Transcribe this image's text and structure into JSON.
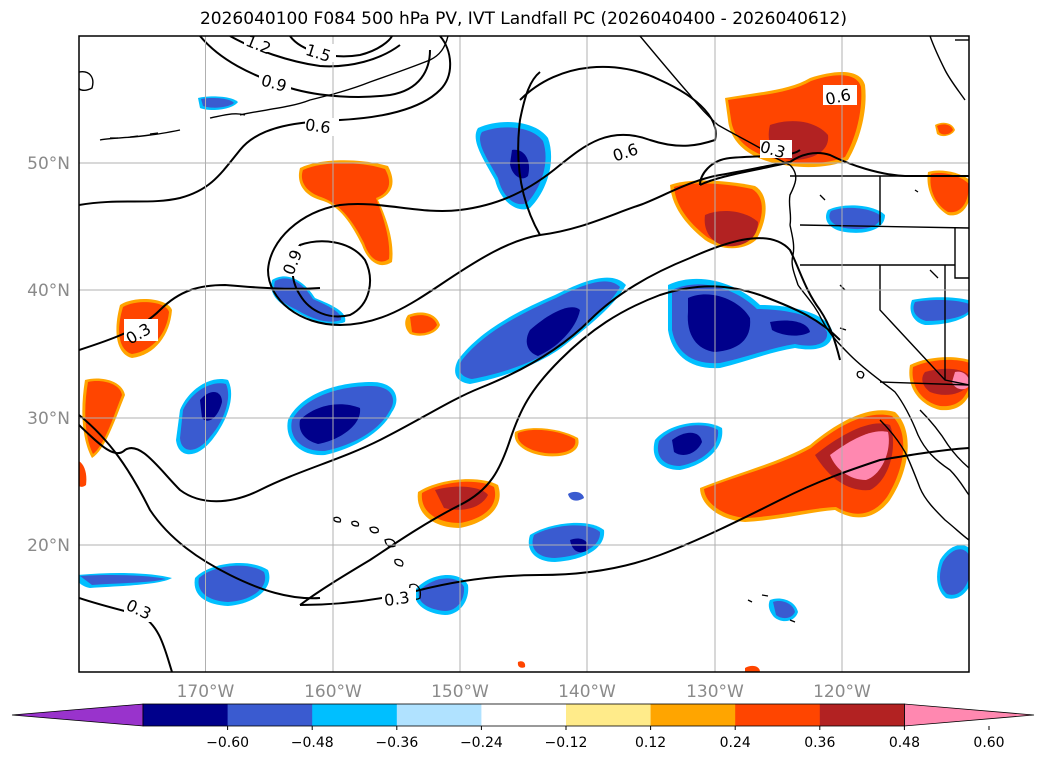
{
  "title": "2026040100 F084 500 hPa PV, IVT Landfall PC (2026040400 - 2026040612)",
  "map": {
    "lon_range": [
      180,
      110
    ],
    "lat_range": [
      10,
      60
    ],
    "lon_ticks": [
      {
        "lon": 170,
        "label": "170°W"
      },
      {
        "lon": 160,
        "label": "160°W"
      },
      {
        "lon": 150,
        "label": "150°W"
      },
      {
        "lon": 140,
        "label": "140°W"
      },
      {
        "lon": 130,
        "label": "130°W"
      },
      {
        "lon": 120,
        "label": "120°W"
      }
    ],
    "lat_ticks": [
      {
        "lat": 20,
        "label": "20°N"
      },
      {
        "lat": 30,
        "label": "30°N"
      },
      {
        "lat": 40,
        "label": "40°N"
      },
      {
        "lat": 50,
        "label": "50°N"
      }
    ],
    "gridlines": true,
    "contour_labels": [
      "1.5",
      "1.2",
      "0.9",
      "0.6",
      "0.6",
      "0.9",
      "0.3",
      "0.3",
      "0.6",
      "0.3",
      "0.3"
    ]
  },
  "colorbar": {
    "ticks": [
      "−0.60",
      "−0.48",
      "−0.36",
      "−0.24",
      "−0.12",
      "0.12",
      "0.24",
      "0.36",
      "0.48",
      "0.60"
    ],
    "colors": [
      "#9933cc",
      "#00008b",
      "#3a5bd0",
      "#00bfff",
      "#b0e2ff",
      "#ffffff",
      "#ffeb8a",
      "#ffa500",
      "#ff4500",
      "#b22222",
      "#ff88b0"
    ]
  }
}
